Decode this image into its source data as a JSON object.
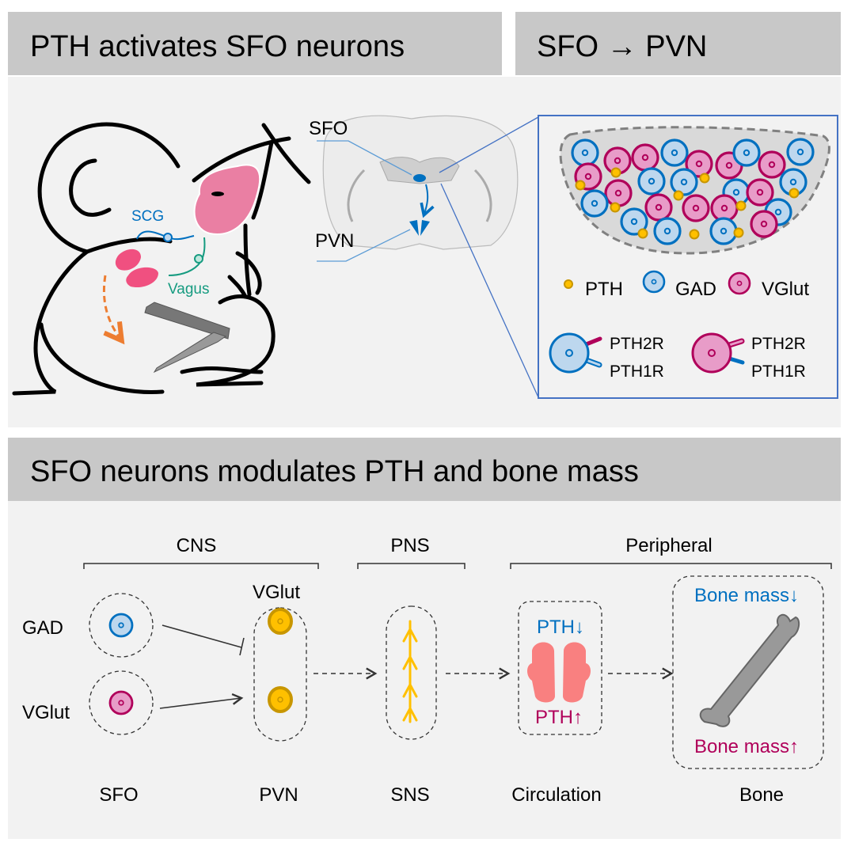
{
  "panels": {
    "top_left_title": "PTH activates SFO neurons",
    "top_right_title": "SFO → PVN",
    "bottom_title": "SFO neurons modulates PTH and bone mass"
  },
  "mouse": {
    "scg_label": "SCG",
    "vagus_label": "Vagus"
  },
  "brain_section": {
    "sfo_label": "SFO",
    "pvn_label": "PVN"
  },
  "legend": {
    "pth": "PTH",
    "gad": "GAD",
    "vglut": "VGlut",
    "gad_receptor_top": "PTH2R",
    "gad_receptor_bottom": "PTH1R",
    "vglut_receptor_top": "PTH2R",
    "vglut_receptor_bottom": "PTH1R"
  },
  "pathway": {
    "groups": [
      "CNS",
      "PNS",
      "Peripheral"
    ],
    "gad_label": "GAD",
    "vglut_label": "VGlut",
    "pvn_cell_label": "VGlut",
    "pth_down": "PTH↓",
    "pth_up": "PTH↑",
    "bone_down": "Bone mass↓",
    "bone_up": "Bone mass↑",
    "stages": [
      "SFO",
      "PVN",
      "SNS",
      "Circulation",
      "Bone"
    ]
  },
  "colors": {
    "header": "#c8c8c8",
    "panel": "#f2f2f2",
    "gad": "#0070c0",
    "gad_fill": "#bdd7ee",
    "vglut": "#b0005a",
    "vglut_fill": "#e89cc8",
    "pth": "#c89600",
    "pth_fill": "#ffc000",
    "inset": "#4472c4",
    "vagus": "#169b80",
    "brain_pink": "#ea7fa3",
    "thyroid": "#f05080",
    "arrow_orange": "#ed7d31"
  }
}
